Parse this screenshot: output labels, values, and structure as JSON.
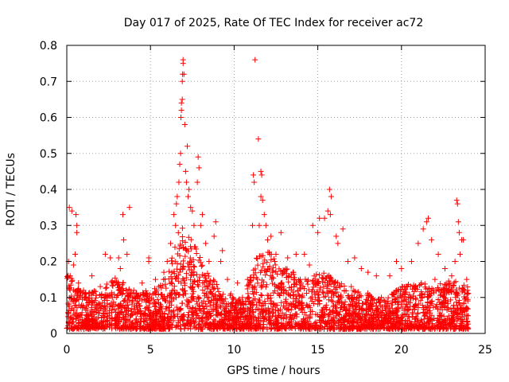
{
  "chart_data": {
    "type": "scatter",
    "title": "Day 017 of 2025, Rate Of TEC Index for receiver ac72",
    "xlabel": "GPS time / hours",
    "ylabel": "ROTI / TECUs",
    "xlim": [
      0,
      25
    ],
    "ylim": [
      0,
      0.8
    ],
    "xticks": [
      0,
      5,
      10,
      15,
      20,
      25
    ],
    "yticks": [
      0,
      0.1,
      0.2,
      0.3,
      0.4,
      0.5,
      0.6,
      0.7,
      0.8
    ],
    "grid": true,
    "marker": "plus",
    "color": "#ff0000",
    "x_data_range": [
      0,
      24
    ],
    "series": [
      {
        "values_note_free": true,
        "points": [
          [
            0.15,
            0.35
          ],
          [
            0.3,
            0.34
          ],
          [
            0.55,
            0.33
          ],
          [
            0.6,
            0.3
          ],
          [
            0.6,
            0.28
          ],
          [
            0.1,
            0.2
          ],
          [
            0.4,
            0.19
          ],
          [
            0.5,
            0.22
          ],
          [
            0.2,
            0.16
          ],
          [
            0.7,
            0.14
          ],
          [
            1.5,
            0.16
          ],
          [
            2.3,
            0.22
          ],
          [
            2.6,
            0.21
          ],
          [
            3.1,
            0.21
          ],
          [
            3.35,
            0.33
          ],
          [
            3.4,
            0.26
          ],
          [
            3.75,
            0.35
          ],
          [
            3.6,
            0.22
          ],
          [
            3.2,
            0.18
          ],
          [
            4.9,
            0.2
          ],
          [
            4.9,
            0.21
          ],
          [
            5.3,
            0.15
          ],
          [
            5.8,
            0.17
          ],
          [
            6.0,
            0.2
          ],
          [
            6.2,
            0.25
          ],
          [
            6.5,
            0.3
          ],
          [
            6.6,
            0.38
          ],
          [
            6.7,
            0.42
          ],
          [
            6.75,
            0.47
          ],
          [
            6.8,
            0.5
          ],
          [
            6.82,
            0.6
          ],
          [
            6.85,
            0.62
          ],
          [
            6.85,
            0.64
          ],
          [
            6.9,
            0.65
          ],
          [
            6.9,
            0.7
          ],
          [
            6.92,
            0.72
          ],
          [
            6.95,
            0.75
          ],
          [
            6.95,
            0.76
          ],
          [
            7.0,
            0.72
          ],
          [
            7.05,
            0.58
          ],
          [
            7.1,
            0.45
          ],
          [
            7.15,
            0.42
          ],
          [
            7.2,
            0.52
          ],
          [
            7.4,
            0.35
          ],
          [
            7.5,
            0.34
          ],
          [
            7.6,
            0.3
          ],
          [
            7.8,
            0.42
          ],
          [
            7.85,
            0.49
          ],
          [
            7.9,
            0.46
          ],
          [
            8.0,
            0.3
          ],
          [
            8.1,
            0.33
          ],
          [
            8.3,
            0.25
          ],
          [
            8.5,
            0.2
          ],
          [
            8.8,
            0.27
          ],
          [
            8.9,
            0.31
          ],
          [
            9.2,
            0.2
          ],
          [
            9.3,
            0.23
          ],
          [
            9.6,
            0.15
          ],
          [
            10.2,
            0.14
          ],
          [
            10.8,
            0.15
          ],
          [
            11.1,
            0.3
          ],
          [
            11.15,
            0.44
          ],
          [
            11.2,
            0.42
          ],
          [
            11.25,
            0.76
          ],
          [
            11.45,
            0.54
          ],
          [
            11.6,
            0.45
          ],
          [
            11.65,
            0.44
          ],
          [
            11.6,
            0.38
          ],
          [
            11.7,
            0.37
          ],
          [
            11.5,
            0.3
          ],
          [
            12.0,
            0.26
          ],
          [
            12.5,
            0.22
          ],
          [
            12.8,
            0.28
          ],
          [
            13.2,
            0.21
          ],
          [
            13.7,
            0.22
          ],
          [
            14.2,
            0.22
          ],
          [
            14.5,
            0.19
          ],
          [
            14.7,
            0.3
          ],
          [
            15.0,
            0.28
          ],
          [
            15.1,
            0.32
          ],
          [
            15.4,
            0.32
          ],
          [
            15.6,
            0.34
          ],
          [
            15.7,
            0.4
          ],
          [
            15.8,
            0.38
          ],
          [
            15.75,
            0.33
          ],
          [
            16.1,
            0.27
          ],
          [
            16.5,
            0.29
          ],
          [
            16.2,
            0.25
          ],
          [
            16.8,
            0.2
          ],
          [
            17.2,
            0.21
          ],
          [
            17.6,
            0.18
          ],
          [
            18.0,
            0.17
          ],
          [
            18.5,
            0.16
          ],
          [
            19.3,
            0.16
          ],
          [
            19.7,
            0.2
          ],
          [
            20.0,
            0.18
          ],
          [
            20.6,
            0.2
          ],
          [
            21.0,
            0.25
          ],
          [
            21.3,
            0.29
          ],
          [
            21.5,
            0.31
          ],
          [
            21.6,
            0.32
          ],
          [
            21.8,
            0.26
          ],
          [
            22.2,
            0.22
          ],
          [
            22.6,
            0.18
          ],
          [
            23.0,
            0.16
          ],
          [
            23.2,
            0.2
          ],
          [
            23.3,
            0.37
          ],
          [
            23.35,
            0.36
          ],
          [
            23.4,
            0.31
          ],
          [
            23.45,
            0.28
          ],
          [
            23.6,
            0.26
          ],
          [
            23.7,
            0.26
          ],
          [
            23.9,
            0.15
          ],
          [
            23.95,
            0.12
          ],
          [
            23.5,
            0.22
          ],
          [
            11.8,
            0.33
          ],
          [
            11.9,
            0.3
          ],
          [
            12.2,
            0.27
          ],
          [
            6.4,
            0.33
          ],
          [
            6.55,
            0.36
          ],
          [
            7.3,
            0.4
          ],
          [
            7.25,
            0.38
          ],
          [
            2.0,
            0.13
          ],
          [
            1.0,
            0.12
          ],
          [
            4.0,
            0.12
          ],
          [
            4.5,
            0.14
          ],
          [
            5.5,
            0.13
          ],
          [
            9.8,
            0.11
          ],
          [
            10.5,
            0.1
          ],
          [
            13.0,
            0.17
          ],
          [
            14.0,
            0.14
          ],
          [
            17.0,
            0.13
          ],
          [
            18.8,
            0.1
          ],
          [
            19.0,
            0.09
          ],
          [
            20.3,
            0.13
          ],
          [
            22.0,
            0.15
          ],
          [
            22.8,
            0.12
          ]
        ]
      }
    ]
  }
}
